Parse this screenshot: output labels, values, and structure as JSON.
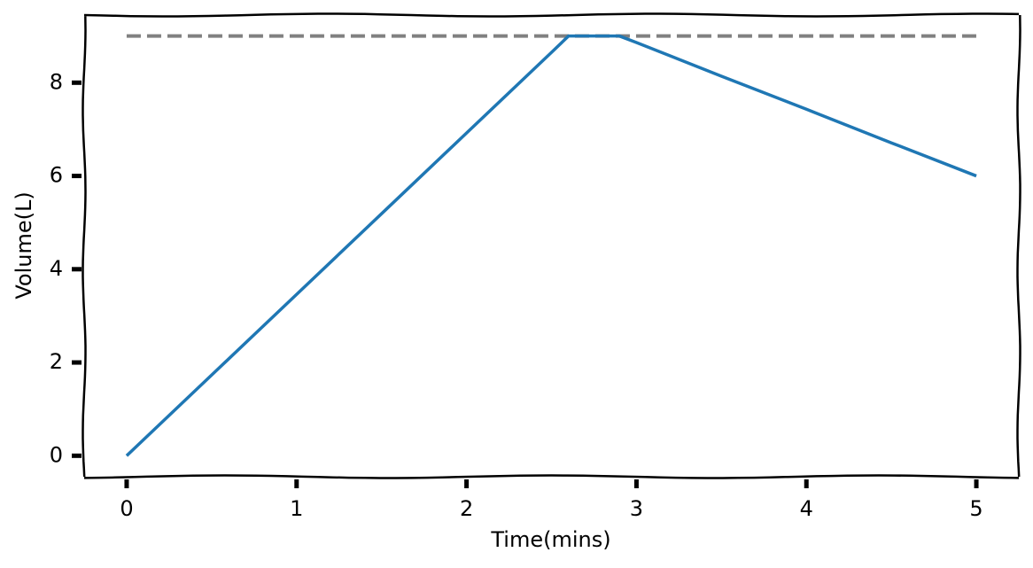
{
  "chart_data": {
    "type": "line",
    "x_label": "Time(mins)",
    "y_label": "Volume(L)",
    "x": [
      0,
      0.5,
      1,
      1.5,
      2,
      2.5,
      2.6,
      2.8,
      2.9,
      3,
      3.5,
      4,
      4.5,
      5
    ],
    "series": [
      {
        "color": "#1f77b4",
        "values": [
          0,
          1.73,
          3.46,
          5.19,
          6.92,
          8.65,
          9,
          9,
          9,
          8.86,
          8.14,
          7.43,
          6.71,
          6
        ]
      }
    ],
    "reference_line": {
      "y": 9,
      "x": [
        0,
        5
      ],
      "color": "#808080"
    },
    "xlim": [
      -0.25,
      5.25
    ],
    "ylim": [
      -0.45,
      9.45
    ],
    "xticks": [
      0,
      1,
      2,
      3,
      4,
      5
    ],
    "yticks": [
      0,
      2,
      4,
      6,
      8
    ]
  }
}
